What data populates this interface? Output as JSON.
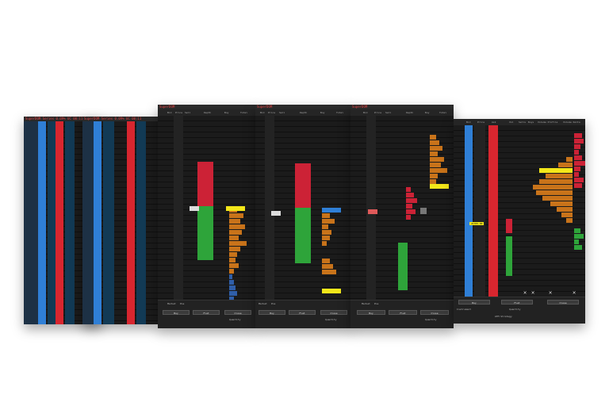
{
  "windows": {
    "w1": {
      "title": "SuperDOM Series 0.09% UC 00:11"
    },
    "w2": {
      "title": "SuperDOM Series 0.09% UC 00:11"
    },
    "w3": {
      "title": "SuperDOM",
      "headers": [
        "Bid",
        "Price",
        "Sell",
        "Depth",
        "Buy",
        "Total"
      ],
      "buttons": {
        "buy": "Buy",
        "mid": "Flat",
        "close": "Close"
      },
      "labels": {
        "market": "Market",
        "pos": "Pos",
        "qty": "Quantity"
      }
    },
    "w4": {
      "title": "SuperDOM",
      "headers": [
        "Bid",
        "Price",
        "Sell",
        "Depth",
        "Buy",
        "Total"
      ],
      "buttons": {
        "buy": "Buy",
        "mid": "Flat",
        "close": "Close"
      },
      "labels": {
        "market": "Market",
        "pos": "Pos",
        "qty": "Quantity"
      }
    },
    "w5": {
      "title": "SuperDOM",
      "headers": [
        "Bid",
        "Price",
        "Sell",
        "Depth",
        "Buy",
        "Total"
      ],
      "buttons": {
        "buy": "Buy",
        "mid": "Flat",
        "close": "Close"
      },
      "labels": {
        "market": "Market",
        "pos": "Pos",
        "qty": "Quantity"
      }
    },
    "w6": {
      "title": "",
      "headers": [
        "Bid",
        "Price",
        "Ask",
        "Vol",
        "Sells",
        "Buys",
        "Volume Profile",
        "Volume Delta"
      ],
      "buttons": {
        "buy": "Buy",
        "mid": "Flat",
        "close": "Close"
      },
      "highlight": "21765.00",
      "labels": {
        "instrument": "Instrument",
        "qty": "Quantity",
        "strategy": "ATM Strategy"
      }
    }
  },
  "colors": {
    "bid": "#2f7fd6",
    "ask": "#d8262f",
    "buyvol": "#2ea43a",
    "sellvol": "#cc2236",
    "orange": "#c8731a",
    "yellow": "#f3e71a",
    "bg": "#1b1b1b"
  }
}
